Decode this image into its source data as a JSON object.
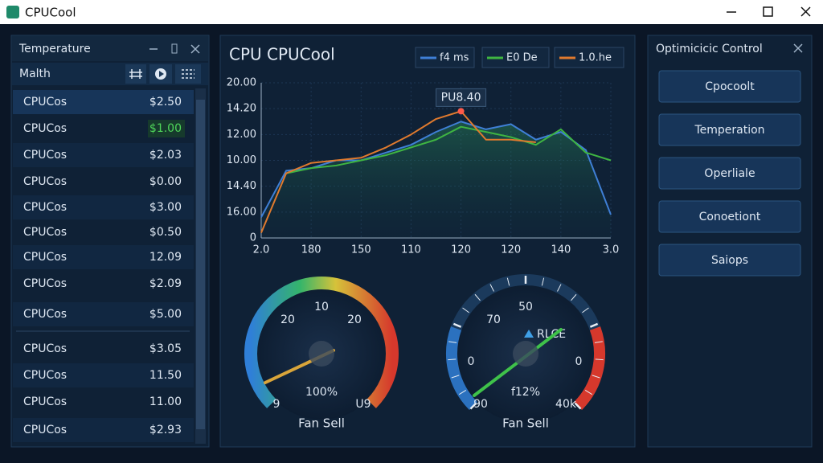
{
  "window": {
    "title": "CPUCool"
  },
  "left_panel": {
    "title": "Temperature",
    "subheader": "Malth",
    "rows": [
      {
        "name": "CPUCos",
        "value": "$2.50"
      },
      {
        "name": "CPUCos",
        "value": "$1.00"
      },
      {
        "name": "CPUCos",
        "value": "$2.03"
      },
      {
        "name": "CPUCos",
        "value": "$0.00"
      },
      {
        "name": "CPUCos",
        "value": "$3.00"
      },
      {
        "name": "CPUCos",
        "value": "$0.50"
      },
      {
        "name": "CPUCos",
        "value": "12.09"
      },
      {
        "name": "CPUCos",
        "value": "$2.09"
      },
      {
        "name": "CPUCos",
        "value": "$5.00"
      },
      {
        "name": "CPUCos",
        "value": "$3.05"
      },
      {
        "name": "CPUCos",
        "value": "11.50"
      },
      {
        "name": "CPUCos",
        "value": "11.00"
      },
      {
        "name": "CPUCos",
        "value": "$2.93"
      }
    ]
  },
  "center_panel": {
    "title": "CPU CPUCool",
    "chart_data": {
      "type": "line",
      "annotation": "PU8.40",
      "x": [
        0,
        0.5,
        1,
        1.5,
        2,
        2.5,
        3,
        3.5,
        4,
        4.5,
        5,
        5.5,
        6,
        6.5,
        7
      ],
      "xlim": [
        0,
        7
      ],
      "xticks": [
        {
          "value": 0,
          "label": "2.0"
        },
        {
          "value": 1,
          "label": "180"
        },
        {
          "value": 2,
          "label": "150"
        },
        {
          "value": 3,
          "label": "110"
        },
        {
          "value": 4,
          "label": "120"
        },
        {
          "value": 5,
          "label": "120"
        },
        {
          "value": 6,
          "label": "140"
        },
        {
          "value": 7,
          "label": "3.0"
        }
      ],
      "ylim": [
        0,
        6
      ],
      "yticks": [
        0,
        {
          "value": 1,
          "label": "16.00"
        },
        {
          "value": 2,
          "label": "14.40"
        },
        {
          "value": 3,
          "label": "10.00"
        },
        {
          "value": 4,
          "label": "12.00"
        },
        {
          "value": 5,
          "label": "14.20"
        },
        {
          "value": 6,
          "label": "20.00"
        }
      ],
      "grid": true,
      "series": [
        {
          "name": "f4 ms",
          "color": "#3f7fd6",
          "values": [
            0.8,
            2.6,
            2.7,
            3.0,
            3.0,
            3.3,
            3.6,
            4.1,
            4.5,
            4.2,
            4.4,
            3.8,
            4.1,
            3.4,
            0.9
          ]
        },
        {
          "name": "E0 De",
          "color": "#3fb542",
          "values": [
            null,
            2.5,
            2.7,
            2.8,
            3.0,
            3.2,
            3.5,
            3.8,
            4.3,
            4.1,
            3.9,
            3.6,
            4.2,
            3.3,
            3.0
          ]
        },
        {
          "name": "1.0.he",
          "color": "#e07a2e",
          "values": [
            0.2,
            2.5,
            2.9,
            3.0,
            3.1,
            3.5,
            4.0,
            4.6,
            4.9,
            3.8,
            3.8,
            3.7,
            null,
            null,
            null
          ]
        }
      ]
    },
    "gauges": [
      {
        "labels": [
          "10",
          "20",
          "20",
          "9",
          "U9"
        ],
        "readout": "100%",
        "caption": "Fan Sell"
      },
      {
        "labels": [
          "50",
          "70",
          "0",
          "0",
          "90",
          "40k"
        ],
        "indicator": "RLCE",
        "readout": "f12%",
        "caption": "Fan Sell"
      }
    ]
  },
  "right_panel": {
    "title": "Optimicicic Control",
    "buttons": [
      "Cpocoolt",
      "Temperation",
      "Operliale",
      "Conoetiont",
      "Saiops"
    ]
  }
}
